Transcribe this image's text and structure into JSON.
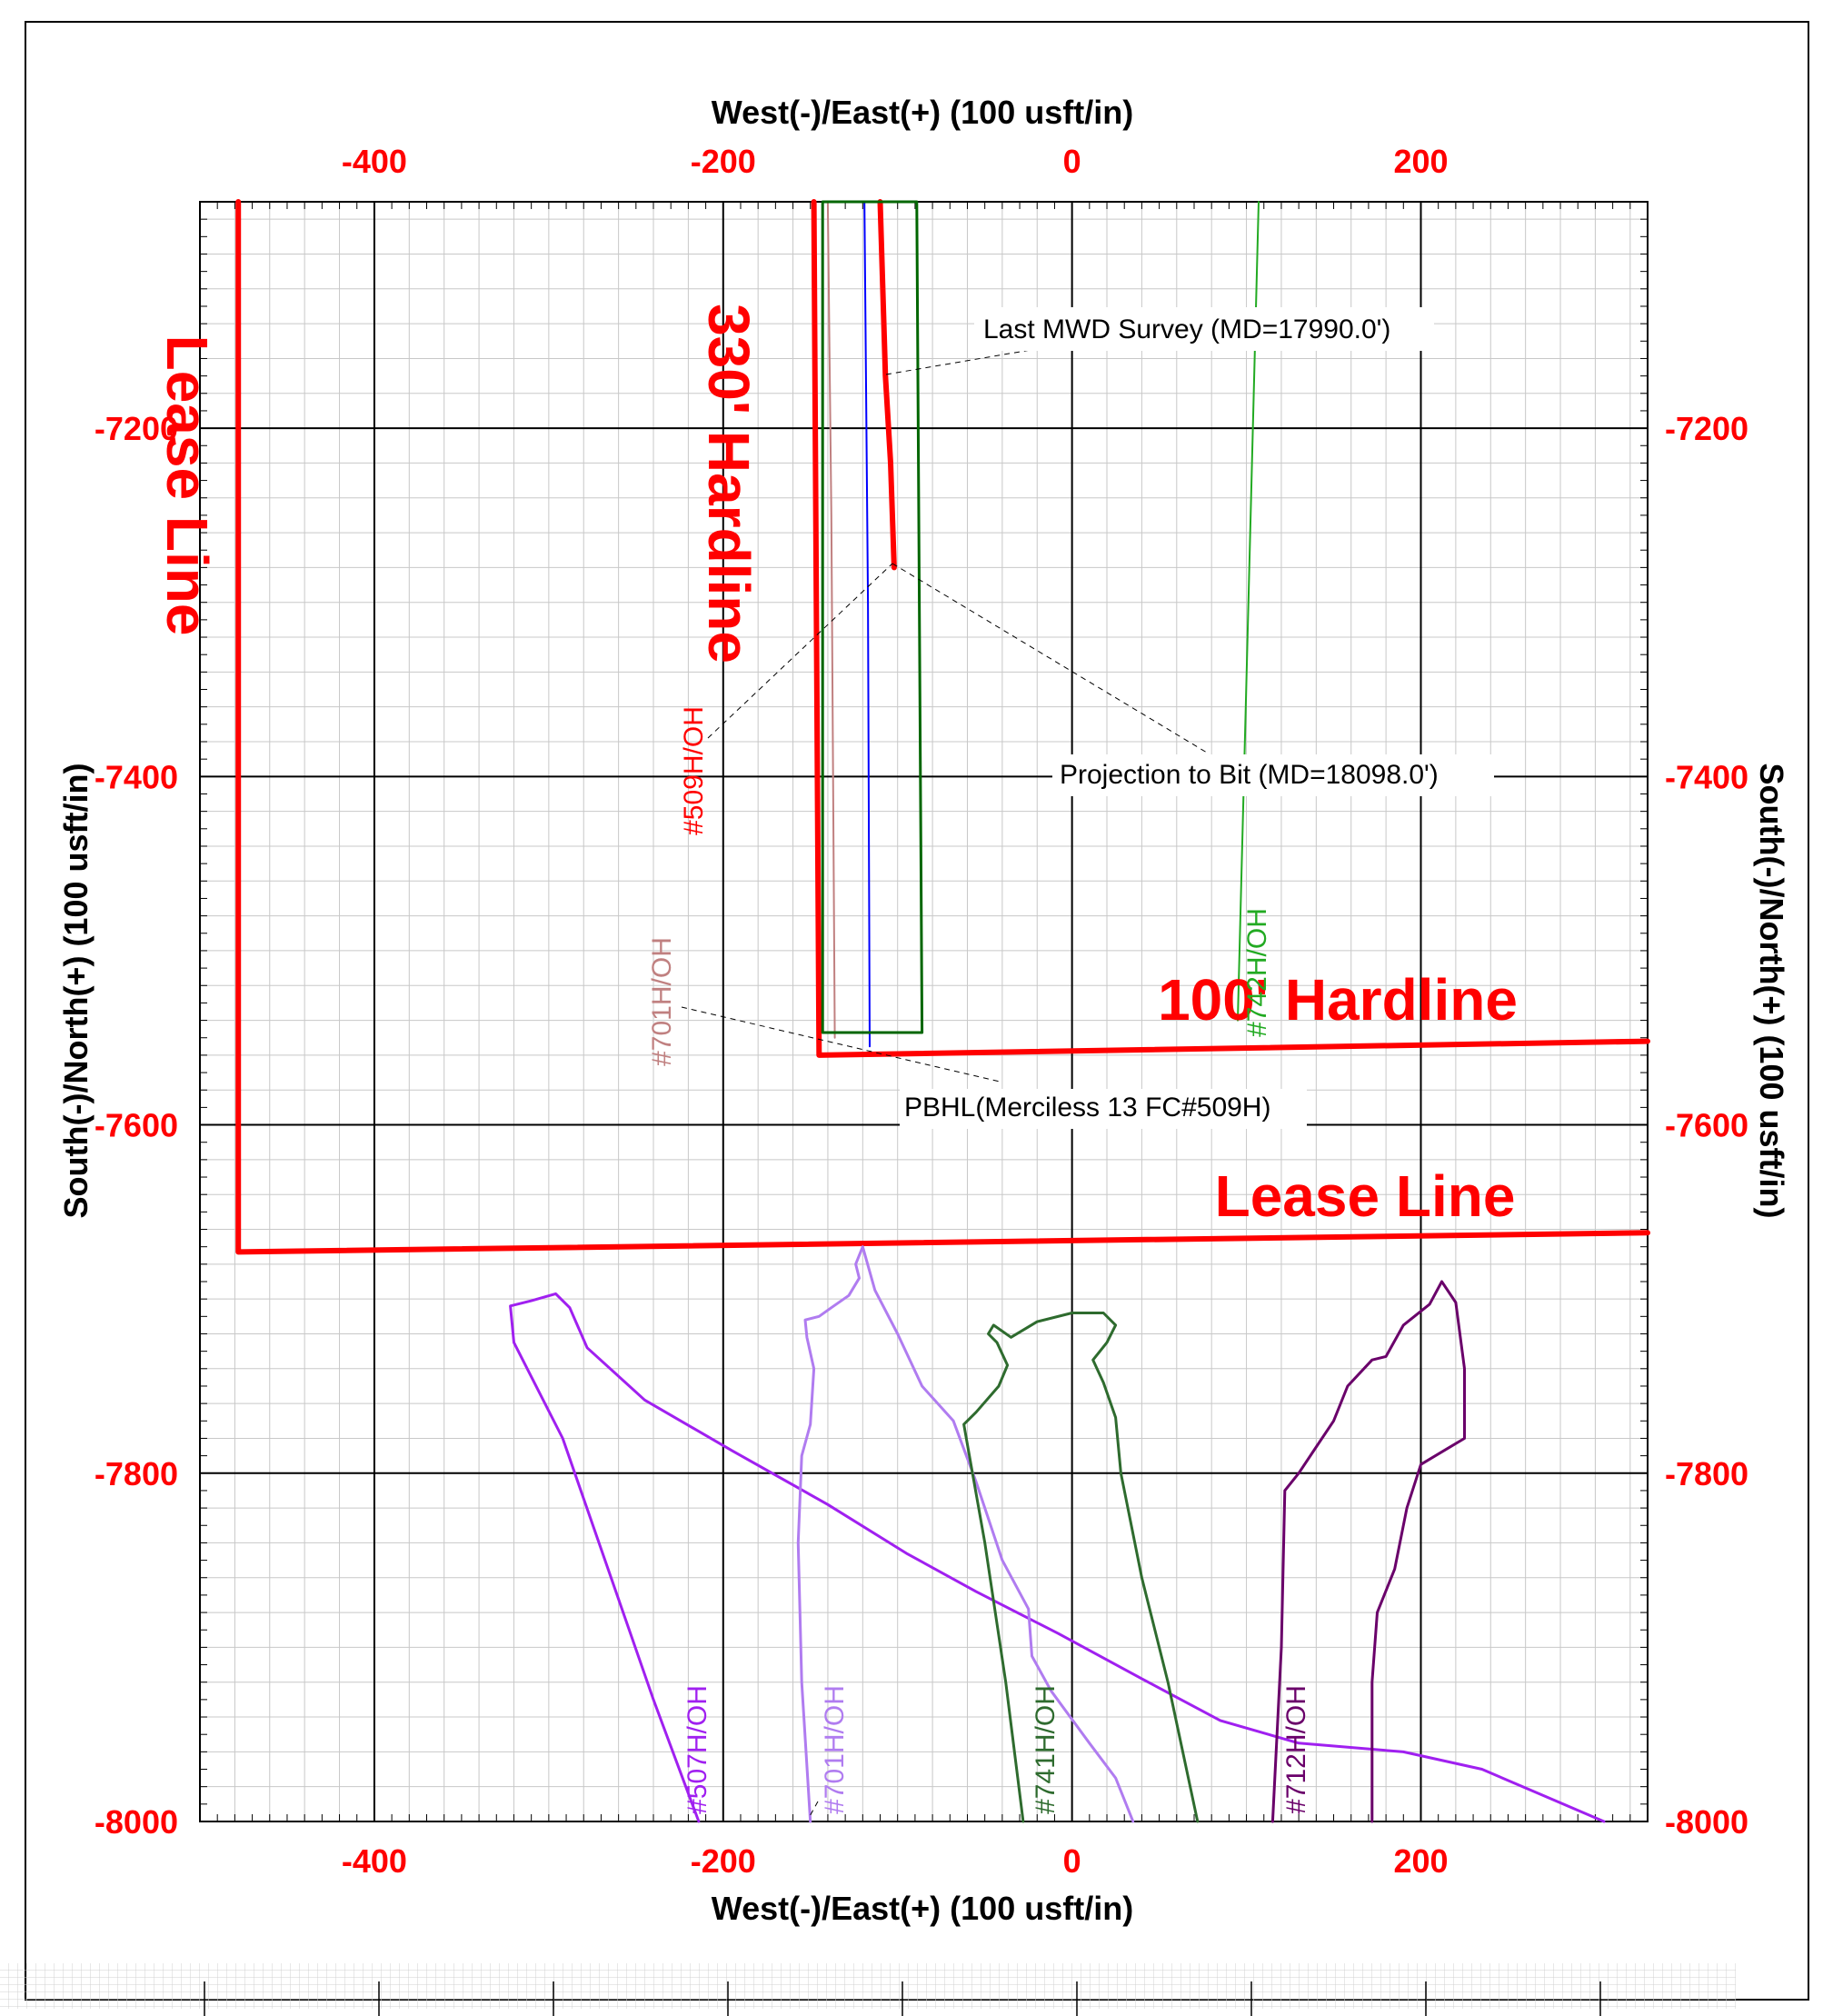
{
  "chart_data": {
    "type": "line",
    "top_axis_title": "West(-)/East(+) (100 usft/in)",
    "bottom_axis_title": "West(-)/East(+) (100 usft/in)",
    "left_axis_title": "South(-)/North(+) (100 usft/in)",
    "right_axis_title": "South(-)/North(+) (100 usft/in)",
    "xlim": [
      -500,
      330
    ],
    "ylim": [
      -8000,
      -7070
    ],
    "x_ticks": [
      -400,
      -200,
      0,
      200
    ],
    "y_ticks": [
      -7200,
      -7400,
      -7600,
      -7800,
      -8000
    ],
    "x_tick_labels": [
      "-400",
      "-200",
      "0",
      "200"
    ],
    "y_tick_labels": [
      "-7200",
      "-7400",
      "-7600",
      "-7800",
      "-8000"
    ],
    "grid": true,
    "big_labels": {
      "lease_line_vertical": "Lease Line",
      "hardline_330": "330' Hardline",
      "hardline_100": "100' Hardline",
      "lease_line_horizontal": "Lease Line"
    },
    "annotations": {
      "last_mwd": "Last MWD Survey (MD=17990.0')",
      "projection": "Projection to Bit  (MD=18098.0')",
      "pbhl": "PBHL(Merciless 13 FC#509H)"
    },
    "well_labels": {
      "w509": "#509H/OH",
      "w701_upper": "#701H/OH",
      "w742": "#742H/OH",
      "w507": "#507H/OH",
      "w701_lower": "#701H/OH",
      "w741": "#741H/OH",
      "w712": "#712H/OH"
    },
    "colors": {
      "hardline": "#ff0000",
      "w509": "#ff0000",
      "w701_upper": "#c08080",
      "w742": "#22aa22",
      "blue_line": "#0000ff",
      "green_box": "#006600",
      "w507": "#a020f0",
      "w701_lower": "#b07cf0",
      "w741": "#2e6b2e",
      "w712": "#6a006a"
    },
    "series": [
      {
        "id": "lease_line",
        "width": 6,
        "points": [
          [
            -478,
            -7070
          ],
          [
            -478,
            -7673
          ],
          [
            330,
            -7662
          ]
        ]
      },
      {
        "id": "hardline_100",
        "width": 6,
        "points": [
          [
            -148,
            -7070
          ],
          [
            -145,
            -7560
          ],
          [
            330,
            -7552
          ]
        ]
      },
      {
        "id": "w509_main",
        "width": 6,
        "points": [
          [
            -110,
            -7070
          ],
          [
            -107,
            -7170
          ],
          [
            -104,
            -7220
          ],
          [
            -102,
            -7280
          ]
        ]
      },
      {
        "id": "w701_upper",
        "width": 2,
        "points": [
          [
            -140,
            -7070
          ],
          [
            -138,
            -7250
          ],
          [
            -136,
            -7550
          ]
        ]
      },
      {
        "id": "blue_line",
        "width": 2,
        "points": [
          [
            -119,
            -7070
          ],
          [
            -117,
            -7300
          ],
          [
            -116,
            -7555
          ]
        ]
      },
      {
        "id": "green_box",
        "width": 3,
        "closed": true,
        "points": [
          [
            -89,
            -7070
          ],
          [
            -86,
            -7547
          ],
          [
            -143,
            -7547
          ],
          [
            -143,
            -7070
          ]
        ]
      },
      {
        "id": "w742",
        "width": 2,
        "points": [
          [
            107,
            -7070
          ],
          [
            95,
            -7540
          ]
        ]
      },
      {
        "id": "w507",
        "width": 3,
        "points": [
          [
            -214,
            -8000
          ],
          [
            -240,
            -7930
          ],
          [
            -292,
            -7780
          ],
          [
            -320,
            -7725
          ],
          [
            -322,
            -7704
          ],
          [
            -310,
            -7701
          ],
          [
            -296,
            -7697
          ],
          [
            -288,
            -7705
          ],
          [
            -278,
            -7728
          ],
          [
            -245,
            -7758
          ],
          [
            -195,
            -7787
          ],
          [
            -140,
            -7818
          ],
          [
            -95,
            -7846
          ],
          [
            -55,
            -7868
          ],
          [
            -8,
            -7892
          ],
          [
            40,
            -7918
          ],
          [
            85,
            -7942
          ],
          [
            130,
            -7955
          ],
          [
            190,
            -7960
          ],
          [
            235,
            -7970
          ],
          [
            270,
            -7985
          ],
          [
            305,
            -8000
          ]
        ]
      },
      {
        "id": "w701_lower",
        "width": 3,
        "points": [
          [
            -150,
            -8000
          ],
          [
            -155,
            -7920
          ],
          [
            -157,
            -7840
          ],
          [
            -155,
            -7790
          ],
          [
            -150,
            -7772
          ],
          [
            -148,
            -7740
          ],
          [
            -152,
            -7722
          ],
          [
            -153,
            -7712
          ],
          [
            -145,
            -7710
          ],
          [
            -138,
            -7705
          ],
          [
            -128,
            -7698
          ],
          [
            -122,
            -7688
          ],
          [
            -124,
            -7680
          ],
          [
            -120,
            -7670
          ],
          [
            -113,
            -7695
          ],
          [
            -100,
            -7720
          ],
          [
            -86,
            -7750
          ],
          [
            -68,
            -7770
          ],
          [
            -55,
            -7805
          ],
          [
            -40,
            -7850
          ],
          [
            -25,
            -7878
          ],
          [
            -23,
            -7905
          ],
          [
            -12,
            -7925
          ],
          [
            10,
            -7955
          ],
          [
            25,
            -7975
          ],
          [
            35,
            -8000
          ]
        ]
      },
      {
        "id": "w741",
        "width": 3,
        "points": [
          [
            -28,
            -8000
          ],
          [
            -38,
            -7920
          ],
          [
            -50,
            -7840
          ],
          [
            -62,
            -7772
          ],
          [
            -55,
            -7765
          ],
          [
            -42,
            -7750
          ],
          [
            -37,
            -7738
          ],
          [
            -43,
            -7725
          ],
          [
            -48,
            -7720
          ],
          [
            -45,
            -7715
          ],
          [
            -35,
            -7722
          ],
          [
            -20,
            -7713
          ],
          [
            0,
            -7708
          ],
          [
            18,
            -7708
          ],
          [
            25,
            -7715
          ],
          [
            20,
            -7725
          ],
          [
            12,
            -7735
          ],
          [
            18,
            -7748
          ],
          [
            25,
            -7768
          ],
          [
            28,
            -7800
          ],
          [
            40,
            -7860
          ],
          [
            55,
            -7920
          ],
          [
            72,
            -8000
          ]
        ]
      },
      {
        "id": "w712",
        "width": 3,
        "points": [
          [
            115,
            -8000
          ],
          [
            120,
            -7900
          ],
          [
            122,
            -7810
          ],
          [
            130,
            -7800
          ],
          [
            140,
            -7785
          ],
          [
            150,
            -7770
          ],
          [
            158,
            -7750
          ],
          [
            172,
            -7735
          ],
          [
            180,
            -7733
          ],
          [
            190,
            -7715
          ],
          [
            205,
            -7703
          ],
          [
            212,
            -7690
          ],
          [
            220,
            -7702
          ],
          [
            225,
            -7740
          ],
          [
            225,
            -7780
          ],
          [
            215,
            -7786
          ],
          [
            200,
            -7795
          ],
          [
            192,
            -7820
          ],
          [
            185,
            -7855
          ],
          [
            175,
            -7880
          ],
          [
            172,
            -7920
          ],
          [
            172,
            -8000
          ]
        ]
      }
    ]
  }
}
